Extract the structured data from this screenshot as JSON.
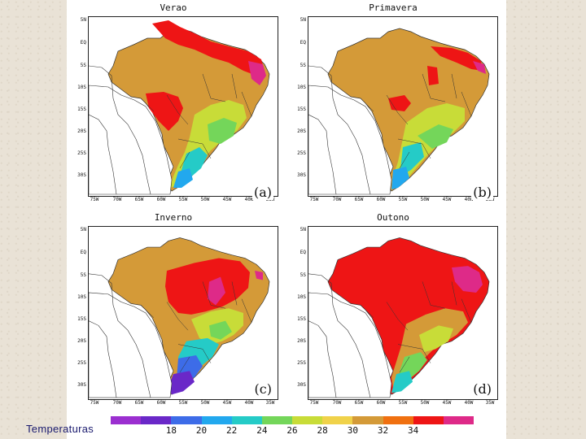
{
  "figure": {
    "panels": [
      {
        "id": "a",
        "title": "Verao",
        "letter": "(a)"
      },
      {
        "id": "b",
        "title": "Primavera",
        "letter": "(b)"
      },
      {
        "id": "c",
        "title": "Inverno",
        "letter": "(c)"
      },
      {
        "id": "d",
        "title": "Outono",
        "letter": "(d)"
      }
    ],
    "lat_labels": [
      "5N",
      "EQ",
      "5S",
      "10S",
      "15S",
      "20S",
      "25S",
      "30S"
    ],
    "lon_labels": [
      "75W",
      "70W",
      "65W",
      "60W",
      "55W",
      "50W",
      "45W",
      "40W",
      "35W"
    ]
  },
  "colorbar": {
    "ticks": [
      "18",
      "20",
      "22",
      "24",
      "26",
      "28",
      "30",
      "32",
      "34"
    ],
    "colors": [
      "#9b2fd0",
      "#6a28c8",
      "#3d6ce8",
      "#22a8ee",
      "#25cbc7",
      "#74d65a",
      "#c8dc38",
      "#f0d24a",
      "#d49a38",
      "#f07010",
      "#ee1515",
      "#de2a88"
    ]
  },
  "caption": {
    "text": "Temperaturas"
  }
}
